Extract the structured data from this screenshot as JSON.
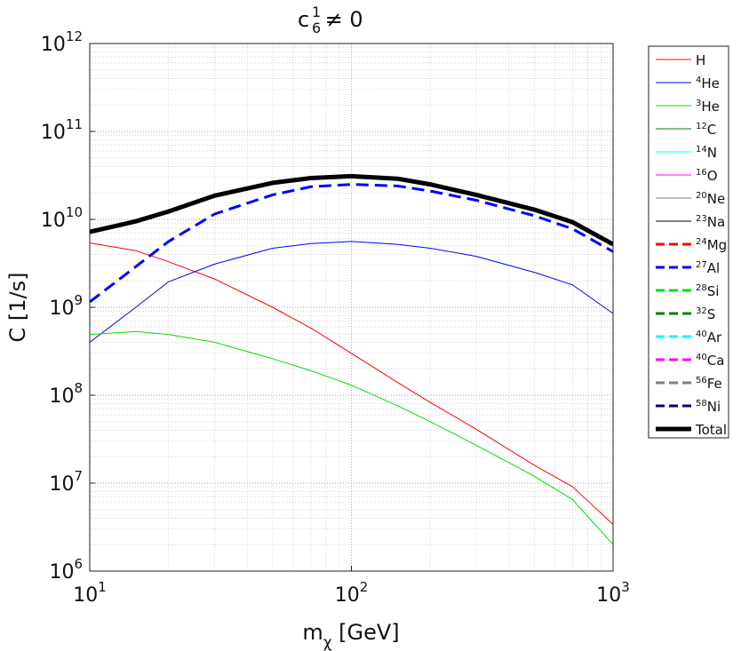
{
  "chart_data": {
    "type": "line",
    "title": {
      "base": "c",
      "sub": "6",
      "sup": "1",
      "rest": " ≠ 0"
    },
    "x_label": {
      "base": "m",
      "sub": "χ",
      "rest": " [GeV]"
    },
    "y_label": "C [1/s]",
    "log_x": true,
    "log_y": true,
    "grid": true,
    "minor_grid": true,
    "legend": "outside-right",
    "xlim": [
      10,
      1000
    ],
    "ylim": [
      1000000,
      1000000000000
    ],
    "xticks": [
      {
        "value": 10,
        "label": "10",
        "exp": "1"
      },
      {
        "value": 100,
        "label": "10",
        "exp": "2"
      },
      {
        "value": 1000,
        "label": "10",
        "exp": "3"
      }
    ],
    "yticks": [
      {
        "value": 1000000,
        "label": "10",
        "exp": "6"
      },
      {
        "value": 10000000,
        "label": "10",
        "exp": "7"
      },
      {
        "value": 100000000,
        "label": "10",
        "exp": "8"
      },
      {
        "value": 1000000000,
        "label": "10",
        "exp": "9"
      },
      {
        "value": 10000000000,
        "label": "10",
        "exp": "10"
      },
      {
        "value": 100000000000,
        "label": "10",
        "exp": "11"
      },
      {
        "value": 1000000000000,
        "label": "10",
        "exp": "12"
      }
    ],
    "x": [
      10,
      15,
      20,
      30,
      50,
      70,
      100,
      150,
      200,
      300,
      500,
      700,
      1000
    ],
    "series": [
      {
        "name": "H",
        "sup": "",
        "color": "#ff0000",
        "dash": false,
        "width": 1,
        "values": [
          5400000000,
          4400000000,
          3300000000,
          2100000000,
          1000000000,
          580000000,
          300000000,
          140000000,
          83000000,
          41000000,
          16000000,
          9100000,
          3400000
        ]
      },
      {
        "name": "He",
        "sup": "4",
        "color": "#0000ff",
        "dash": false,
        "width": 1,
        "values": [
          400000000,
          1000000000,
          1950000000,
          3100000000,
          4700000000,
          5300000000,
          5600000000,
          5200000000,
          4700000000,
          3800000000,
          2500000000,
          1800000000,
          850000000
        ]
      },
      {
        "name": "He",
        "sup": "3",
        "color": "#00e000",
        "dash": false,
        "width": 1,
        "values": [
          490000000,
          530000000,
          490000000,
          400000000,
          260000000,
          190000000,
          130000000,
          76000000,
          50000000,
          27000000,
          12000000,
          6500000,
          2000000
        ]
      },
      {
        "name": "C",
        "sup": "12",
        "color": "#008000",
        "dash": false,
        "width": 1,
        "values": [
          null,
          null,
          null,
          null,
          null,
          null,
          null,
          null,
          null,
          null,
          null,
          null,
          null
        ]
      },
      {
        "name": "N",
        "sup": "14",
        "color": "#00ffff",
        "dash": false,
        "width": 1,
        "values": [
          null,
          null,
          null,
          null,
          null,
          null,
          null,
          null,
          null,
          null,
          null,
          null,
          null
        ]
      },
      {
        "name": "O",
        "sup": "16",
        "color": "#ff00ff",
        "dash": false,
        "width": 1,
        "values": [
          null,
          null,
          null,
          null,
          null,
          null,
          null,
          null,
          null,
          null,
          null,
          null,
          null
        ]
      },
      {
        "name": "Ne",
        "sup": "20",
        "color": "#808080",
        "dash": false,
        "width": 1,
        "values": [
          null,
          null,
          null,
          null,
          null,
          null,
          null,
          null,
          null,
          null,
          null,
          null,
          null
        ]
      },
      {
        "name": "Na",
        "sup": "23",
        "color": "#000000",
        "dash": false,
        "width": 1,
        "values": [
          null,
          null,
          null,
          null,
          null,
          null,
          null,
          null,
          null,
          null,
          null,
          null,
          null
        ]
      },
      {
        "name": "Mg",
        "sup": "24",
        "color": "#ff0000",
        "dash": true,
        "width": 3,
        "values": [
          null,
          null,
          null,
          null,
          null,
          null,
          null,
          null,
          null,
          null,
          null,
          null,
          null
        ]
      },
      {
        "name": "Al",
        "sup": "27",
        "color": "#0000ff",
        "dash": true,
        "width": 3,
        "values": [
          1150000000,
          2900000000,
          5600000000,
          11500000000,
          19000000000,
          23500000000,
          25000000000,
          24000000000,
          21000000000,
          16500000000,
          11000000000,
          7800000000,
          4300000000
        ]
      },
      {
        "name": "Si",
        "sup": "28",
        "color": "#00e000",
        "dash": true,
        "width": 3,
        "values": [
          null,
          null,
          null,
          null,
          null,
          null,
          null,
          null,
          null,
          null,
          null,
          null,
          null
        ]
      },
      {
        "name": "S",
        "sup": "32",
        "color": "#008000",
        "dash": true,
        "width": 3,
        "values": [
          null,
          null,
          null,
          null,
          null,
          null,
          null,
          null,
          null,
          null,
          null,
          null,
          null
        ]
      },
      {
        "name": "Ar",
        "sup": "40",
        "color": "#00ffff",
        "dash": true,
        "width": 3,
        "values": [
          null,
          null,
          null,
          null,
          null,
          null,
          null,
          null,
          null,
          null,
          null,
          null,
          null
        ]
      },
      {
        "name": "Ca",
        "sup": "40",
        "color": "#ff00ff",
        "dash": true,
        "width": 3,
        "values": [
          null,
          null,
          null,
          null,
          null,
          null,
          null,
          null,
          null,
          null,
          null,
          null,
          null
        ]
      },
      {
        "name": "Fe",
        "sup": "56",
        "color": "#808080",
        "dash": true,
        "width": 3,
        "values": [
          null,
          null,
          null,
          null,
          null,
          null,
          null,
          null,
          null,
          null,
          null,
          null,
          null
        ]
      },
      {
        "name": "Ni",
        "sup": "58",
        "color": "#000080",
        "dash": true,
        "width": 3,
        "values": [
          null,
          null,
          null,
          null,
          null,
          null,
          null,
          null,
          null,
          null,
          null,
          null,
          null
        ]
      },
      {
        "name": "Total",
        "sup": "",
        "color": "#000000",
        "dash": false,
        "width": 5,
        "values": [
          7200000000,
          9500000000,
          12300000000,
          18600000000,
          26000000000,
          29500000000,
          31000000000,
          29000000000,
          25000000000,
          19000000000,
          12900000000,
          9300000000,
          5200000000
        ]
      }
    ]
  }
}
